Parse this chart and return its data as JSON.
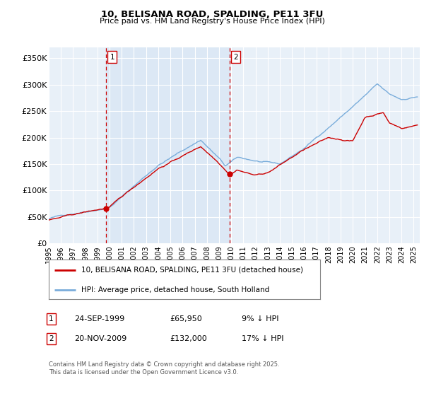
{
  "title": "10, BELISANA ROAD, SPALDING, PE11 3FU",
  "subtitle": "Price paid vs. HM Land Registry's House Price Index (HPI)",
  "background_color": "#ffffff",
  "plot_bg_color": "#e8f0f8",
  "grid_color": "#ffffff",
  "hpi_line_color": "#7aaddb",
  "price_line_color": "#cc0000",
  "vline_color": "#cc0000",
  "shade_color": "#dce8f5",
  "ylim": [
    0,
    370000
  ],
  "yticks": [
    0,
    50000,
    100000,
    150000,
    200000,
    250000,
    300000,
    350000
  ],
  "ytick_labels": [
    "£0",
    "£50K",
    "£100K",
    "£150K",
    "£200K",
    "£250K",
    "£300K",
    "£350K"
  ],
  "sale1_date": 1999.73,
  "sale1_price": 65950,
  "sale1_label": "1",
  "sale1_text": "24-SEP-1999",
  "sale1_price_text": "£65,950",
  "sale1_below_text": "9% ↓ HPI",
  "sale2_date": 2009.89,
  "sale2_price": 132000,
  "sale2_label": "2",
  "sale2_text": "20-NOV-2009",
  "sale2_price_text": "£132,000",
  "sale2_below_text": "17% ↓ HPI",
  "legend_line1": "10, BELISANA ROAD, SPALDING, PE11 3FU (detached house)",
  "legend_line2": "HPI: Average price, detached house, South Holland",
  "footnote1": "Contains HM Land Registry data © Crown copyright and database right 2025.",
  "footnote2": "This data is licensed under the Open Government Licence v3.0.",
  "xmin": 1995.0,
  "xmax": 2025.5
}
